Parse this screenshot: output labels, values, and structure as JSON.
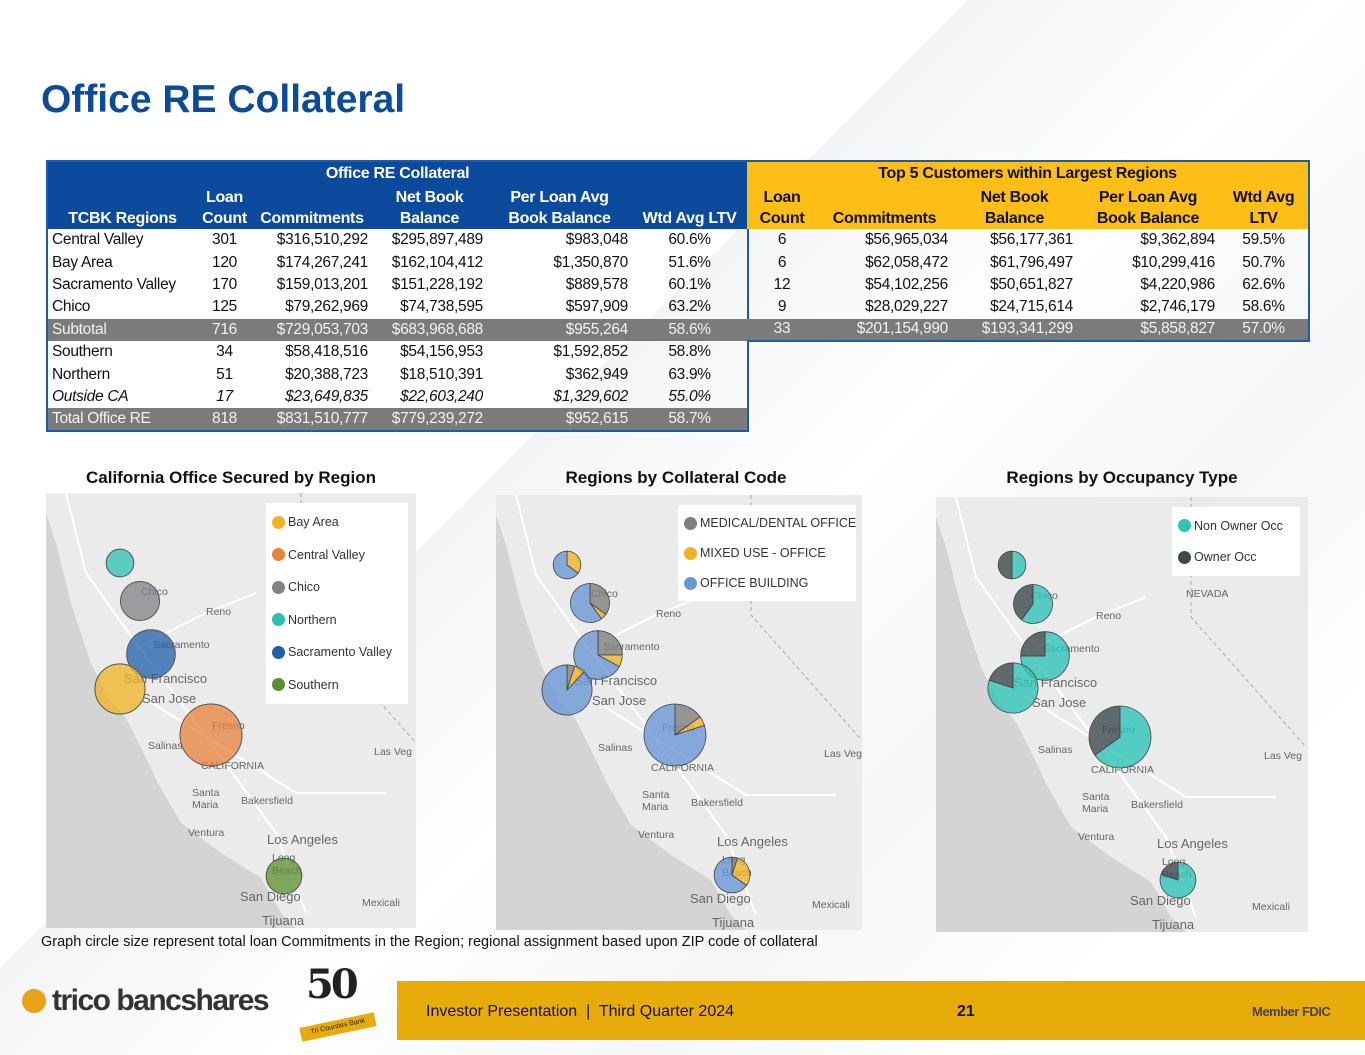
{
  "title": "Office RE Collateral",
  "table_left": {
    "group_header": "Office RE Collateral",
    "columns": [
      "TCBK Regions",
      "Loan Count",
      "Commitments",
      "Net Book Balance",
      "Per Loan Avg Book Balance",
      "Wtd Avg LTV"
    ],
    "rows": [
      [
        "Central Valley",
        "301",
        "$316,510,292",
        "$295,897,489",
        "$983,048",
        "60.6%"
      ],
      [
        "Bay Area",
        "120",
        "$174,267,241",
        "$162,104,412",
        "$1,350,870",
        "51.6%"
      ],
      [
        "Sacramento Valley",
        "170",
        "$159,013,201",
        "$151,228,192",
        "$889,578",
        "60.1%"
      ],
      [
        "Chico",
        "125",
        "$79,262,969",
        "$74,738,595",
        "$597,909",
        "63.2%"
      ],
      [
        "Subtotal",
        "716",
        "$729,053,703",
        "$683,968,688",
        "$955,264",
        "58.6%"
      ],
      [
        "Southern",
        "34",
        "$58,418,516",
        "$54,156,953",
        "$1,592,852",
        "58.8%"
      ],
      [
        "Northern",
        "51",
        "$20,388,723",
        "$18,510,391",
        "$362,949",
        "63.9%"
      ],
      [
        "Outside CA",
        "17",
        "$23,649,835",
        "$22,603,240",
        "$1,329,602",
        "55.0%"
      ],
      [
        "Total Office RE",
        "818",
        "$831,510,777",
        "$779,239,272",
        "$952,615",
        "58.7%"
      ]
    ]
  },
  "table_right": {
    "group_header": "Top 5 Customers within Largest Regions",
    "columns": [
      "Loan Count",
      "Commitments",
      "Net Book Balance",
      "Per Loan Avg Book Balance",
      "Wtd Avg LTV"
    ],
    "rows": [
      [
        "6",
        "$56,965,034",
        "$56,177,361",
        "$9,362,894",
        "59.5%"
      ],
      [
        "6",
        "$62,058,472",
        "$61,796,497",
        "$10,299,416",
        "50.7%"
      ],
      [
        "12",
        "$54,102,256",
        "$50,651,827",
        "$4,220,986",
        "62.6%"
      ],
      [
        "9",
        "$28,029,227",
        "$24,715,614",
        "$2,746,179",
        "58.6%"
      ],
      [
        "33",
        "$201,154,990",
        "$193,341,299",
        "$5,858,827",
        "57.0%"
      ]
    ]
  },
  "maps": [
    {
      "title": "California Office Secured by Region",
      "legend": [
        {
          "label": "Bay Area",
          "color": "#f0b323"
        },
        {
          "label": "Central Valley",
          "color": "#e8823a"
        },
        {
          "label": "Chico",
          "color": "#7f8287"
        },
        {
          "label": "Northern",
          "color": "#2bbfb0"
        },
        {
          "label": "Sacramento Valley",
          "color": "#1f5fa8"
        },
        {
          "label": "Southern",
          "color": "#5a8f2e"
        }
      ]
    },
    {
      "title": "Regions by Collateral Code",
      "legend": [
        {
          "label": "MEDICAL/DENTAL OFFICE",
          "color": "#7f7f7f"
        },
        {
          "label": "MIXED USE - OFFICE",
          "color": "#f0b323"
        },
        {
          "label": "OFFICE BUILDING",
          "color": "#6a97d6"
        }
      ],
      "shares_approx": {
        "Northern": [
          0,
          0.35,
          0.65
        ],
        "Chico": [
          0.35,
          0.05,
          0.6
        ],
        "Sacramento Valley": [
          0.25,
          0.08,
          0.67
        ],
        "Bay Area": [
          0.05,
          0.07,
          0.88
        ],
        "Central Valley": [
          0.15,
          0.05,
          0.8
        ],
        "Southern": [
          0.05,
          0.3,
          0.65
        ]
      }
    },
    {
      "title": "Regions by Occupancy Type",
      "legend": [
        {
          "label": "Non Owner Occ",
          "color": "#2ec4b6"
        },
        {
          "label": "Owner Occ",
          "color": "#3d4a4d"
        }
      ],
      "shares_approx": {
        "Northern": [
          0.5,
          0.5
        ],
        "Chico": [
          0.6,
          0.4
        ],
        "Sacramento Valley": [
          0.75,
          0.25
        ],
        "Bay Area": [
          0.8,
          0.2
        ],
        "Central Valley": [
          0.65,
          0.35
        ],
        "Southern": [
          0.8,
          0.2
        ]
      }
    }
  ],
  "region_commitments": {
    "Northern": 20388723,
    "Chico": 79262969,
    "Sacramento Valley": 159013201,
    "Bay Area": 174267241,
    "Central Valley": 316510292,
    "Southern": 58418516
  },
  "cities": {
    "reno": "Reno",
    "chico": "Chico",
    "sacramento": "Sacramento",
    "sf": "San Francisco",
    "sj": "San Jose",
    "fresno": "Fresno",
    "salinas": "Salinas",
    "ca": "CALIFORNIA",
    "lv": "Las Veg",
    "sm1": "Santa",
    "sm2": "Maria",
    "bak": "Bakersfield",
    "ven": "Ventura",
    "la": "Los Angeles",
    "lb1": "Long",
    "lb2": "Beach",
    "sd": "San Diego",
    "mex": "Mexicali",
    "tij": "Tijuana",
    "nv": "NEVADA"
  },
  "note": "Graph circle size represent total loan Commitments in the Region; regional assignment based upon ZIP code of collateral",
  "footer": {
    "brand": "trico bancshares",
    "anniversary": "50",
    "ribbon": "Tri Counties Bank",
    "presentation": "Investor Presentation  |  Third Quarter 2024",
    "page": "21",
    "fdic": "Member FDIC"
  }
}
